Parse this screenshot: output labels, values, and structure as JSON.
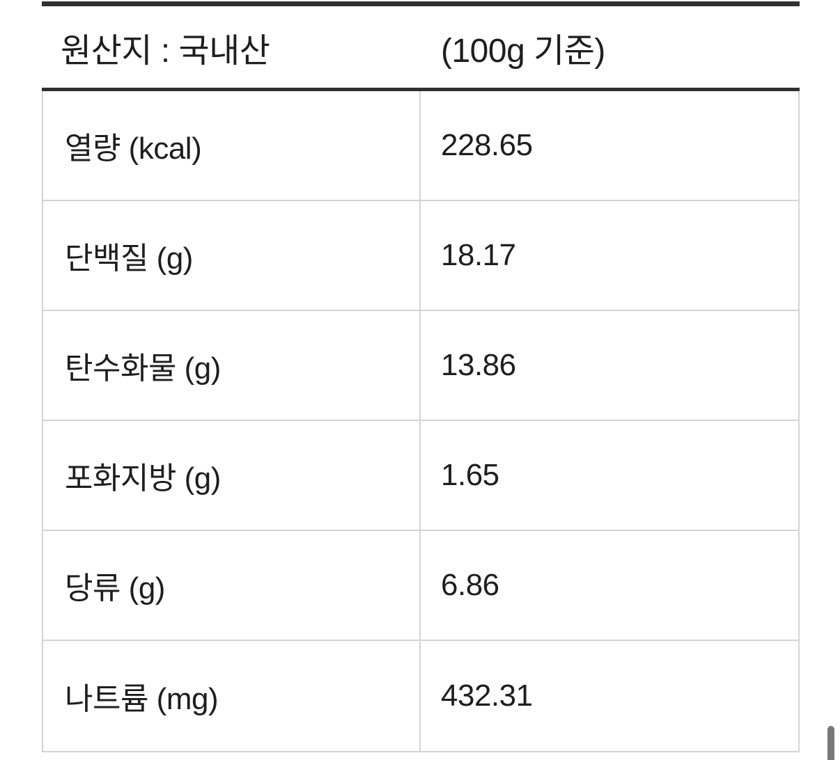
{
  "header": {
    "origin_label": "원산지 : 국내산",
    "serving_basis_label": "(100g 기준)"
  },
  "nutrition_table": {
    "rows": [
      {
        "label": "열량 (kcal)",
        "value": "228.65"
      },
      {
        "label": "단백질 (g)",
        "value": "18.17"
      },
      {
        "label": "탄수화물 (g)",
        "value": "13.86"
      },
      {
        "label": "포화지방 (g)",
        "value": "1.65"
      },
      {
        "label": "당류 (g)",
        "value": "6.86"
      },
      {
        "label": "나트륨 (mg)",
        "value": "432.31"
      }
    ]
  },
  "colors": {
    "bar": "#303030",
    "border": "#d4d4d4",
    "text": "#1e1e1e",
    "scrollbar-thumb": "#787878"
  }
}
